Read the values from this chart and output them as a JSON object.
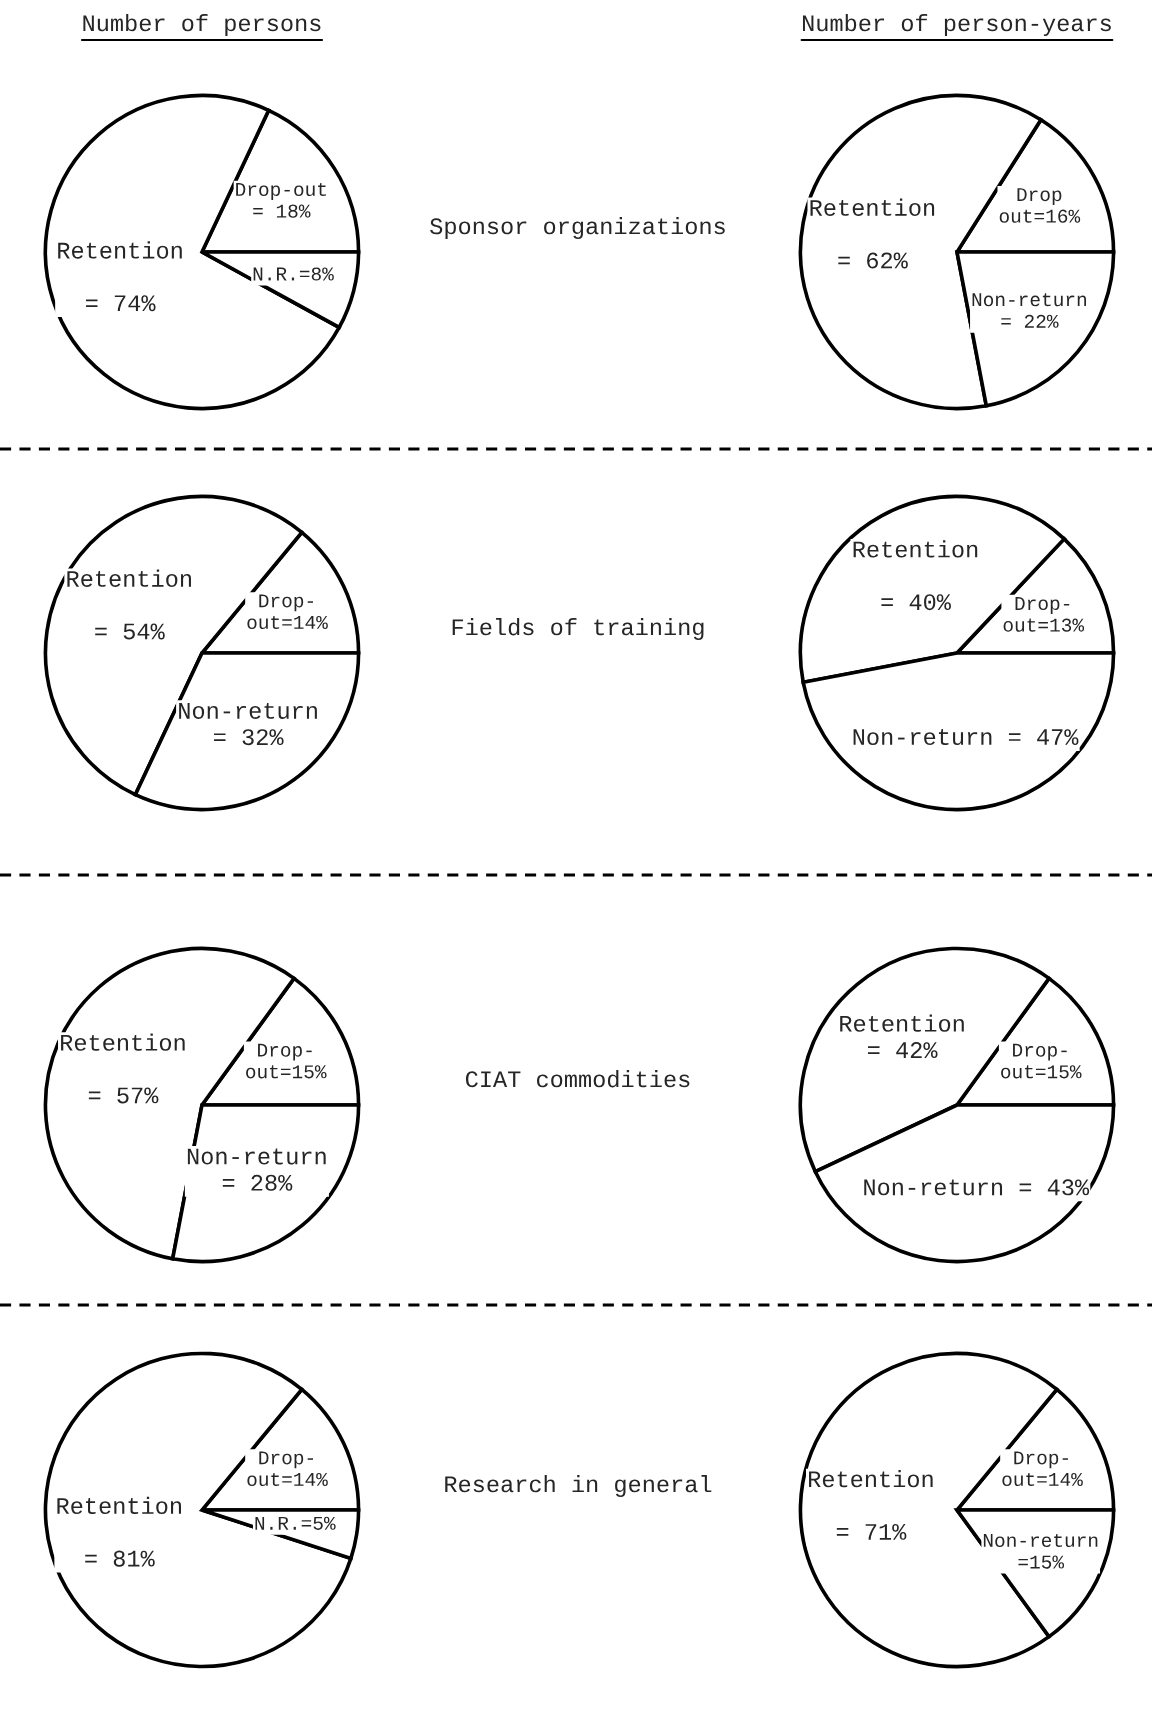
{
  "chart_data": [
    {
      "type": "pie",
      "title": "Number of persons",
      "annotations": [
        "Sponsor organizations"
      ],
      "categories": [
        "Drop-out\n= 18%",
        "Retention\n\n= 74%",
        "N.R.=8%"
      ],
      "values": [
        18,
        74,
        8
      ],
      "colors": [
        "#ffffff",
        "#ffffff",
        "#ffffff"
      ]
    },
    {
      "type": "pie",
      "title": "Number of person-years",
      "categories": [
        "Drop\nout=16%",
        "Retention\n\n= 62%",
        "Non-return\n= 22%"
      ],
      "values": [
        16,
        62,
        22
      ],
      "colors": [
        "#ffffff",
        "#ffffff",
        "#ffffff"
      ]
    },
    {
      "type": "pie",
      "annotations": [
        "Fields of training"
      ],
      "categories": [
        "Drop-\nout=14%",
        "Retention\n\n= 54%",
        "Non-return\n= 32%"
      ],
      "values": [
        14,
        54,
        32
      ],
      "colors": [
        "#ffffff",
        "#ffffff",
        "#ffffff"
      ]
    },
    {
      "type": "pie",
      "categories": [
        "Drop-\nout=13%",
        "Retention\n\n= 40%",
        "Non-return = 47%"
      ],
      "values": [
        13,
        40,
        47
      ],
      "colors": [
        "#ffffff",
        "#ffffff",
        "#ffffff"
      ]
    },
    {
      "type": "pie",
      "annotations": [
        "CIAT commodities"
      ],
      "categories": [
        "Drop-\nout=15%",
        "Retention\n\n= 57%",
        "Non-return\n= 28%"
      ],
      "values": [
        15,
        57,
        28
      ],
      "colors": [
        "#ffffff",
        "#ffffff",
        "#ffffff"
      ]
    },
    {
      "type": "pie",
      "categories": [
        "Drop-\nout=15%",
        "Retention\n= 42%",
        "Non-return = 43%"
      ],
      "values": [
        15,
        42,
        43
      ],
      "colors": [
        "#ffffff",
        "#ffffff",
        "#ffffff"
      ]
    },
    {
      "type": "pie",
      "annotations": [
        "Research in general"
      ],
      "categories": [
        "Drop-\nout=14%",
        "Retention\n\n= 81%",
        "N.R.=5%"
      ],
      "values": [
        14,
        81,
        5
      ],
      "colors": [
        "#ffffff",
        "#ffffff",
        "#ffffff"
      ]
    },
    {
      "type": "pie",
      "categories": [
        "Drop-\nout=14%",
        "Retention\n\n= 71%",
        "Non-return\n=15%"
      ],
      "values": [
        14,
        71,
        15
      ],
      "colors": [
        "#ffffff",
        "#ffffff",
        "#ffffff"
      ]
    }
  ]
}
